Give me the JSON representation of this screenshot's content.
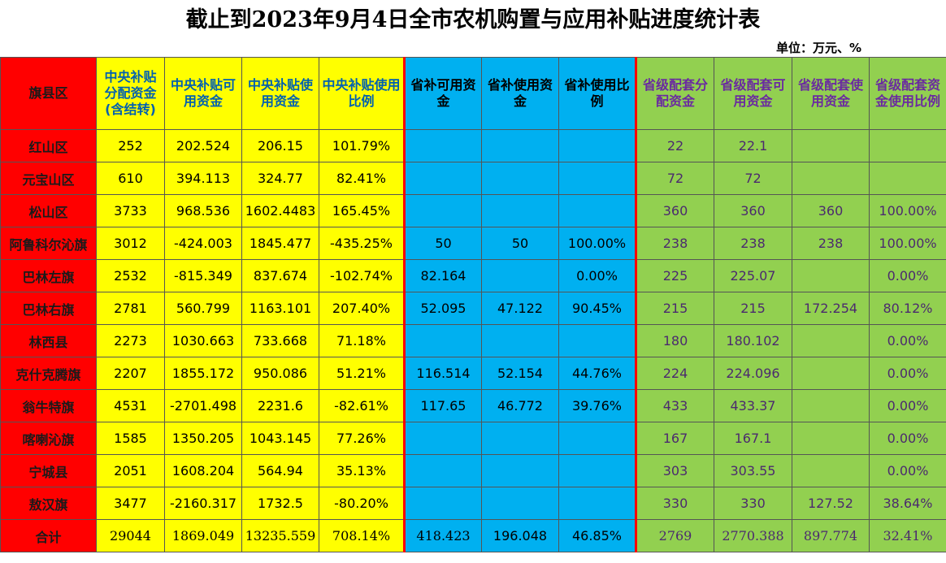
{
  "title": "截止到2023年9月4日全市农机购置与应用补贴进度统计表",
  "unit": "单位：万元、%",
  "table": {
    "header": [
      "旗县区",
      "中央补贴分配资金(含结转)",
      "中央补贴可用资金",
      "中央补贴使用资金",
      "中央补贴使用比例",
      "省补可用资金",
      "省补使用资金",
      "省补使用比例",
      "省级配套分配资金",
      "省级配套可用资金",
      "省级配套使用资金",
      "省级配套资金使用比例"
    ],
    "rows": [
      [
        "红山区",
        "252",
        "202.524",
        "206.15",
        "101.79%",
        null,
        null,
        null,
        "22",
        "22.1",
        null,
        null
      ],
      [
        "元宝山区",
        "610",
        "394.113",
        "324.77",
        "82.41%",
        null,
        null,
        null,
        "72",
        "72",
        null,
        null
      ],
      [
        "松山区",
        "3733",
        "968.536",
        "1602.4483",
        "165.45%",
        null,
        null,
        null,
        "360",
        "360",
        "360",
        "100.00%"
      ],
      [
        "阿鲁科尔沁旗",
        "3012",
        "-424.003",
        "1845.477",
        "-435.25%",
        "50",
        "50",
        "100.00%",
        "238",
        "238",
        "238",
        "100.00%"
      ],
      [
        "巴林左旗",
        "2532",
        "-815.349",
        "837.674",
        "-102.74%",
        "82.164",
        null,
        "0.00%",
        "225",
        "225.07",
        null,
        "0.00%"
      ],
      [
        "巴林右旗",
        "2781",
        "560.799",
        "1163.101",
        "207.40%",
        "52.095",
        "47.122",
        "90.45%",
        "215",
        "215",
        "172.254",
        "80.12%"
      ],
      [
        "林西县",
        "2273",
        "1030.663",
        "733.668",
        "71.18%",
        null,
        null,
        null,
        "180",
        "180.102",
        null,
        "0.00%"
      ],
      [
        "克什克腾旗",
        "2207",
        "1855.172",
        "950.086",
        "51.21%",
        "116.514",
        "52.154",
        "44.76%",
        "224",
        "224.096",
        null,
        "0.00%"
      ],
      [
        "翁牛特旗",
        "4531",
        "-2701.498",
        "2231.6",
        "-82.61%",
        "117.65",
        "46.772",
        "39.76%",
        "433",
        "433.37",
        null,
        "0.00%"
      ],
      [
        "喀喇沁旗",
        "1585",
        "1350.205",
        "1043.145",
        "77.26%",
        null,
        null,
        null,
        "167",
        "167.1",
        null,
        "0.00%"
      ],
      [
        "宁城县",
        "2051",
        "1608.204",
        "564.94",
        "35.13%",
        null,
        null,
        null,
        "303",
        "303.55",
        null,
        "0.00%"
      ],
      [
        "敖汉旗",
        "3477",
        "-2160.317",
        "1732.5",
        "-80.20%",
        null,
        null,
        null,
        "330",
        "330",
        "127.52",
        "38.64%"
      ],
      [
        "合计",
        "29044",
        "1869.049",
        "13235.559",
        "708.14%",
        "418.423",
        "196.048",
        "46.85%",
        "2769",
        "2770.388",
        "897.774",
        "32.41%"
      ]
    ]
  }
}
